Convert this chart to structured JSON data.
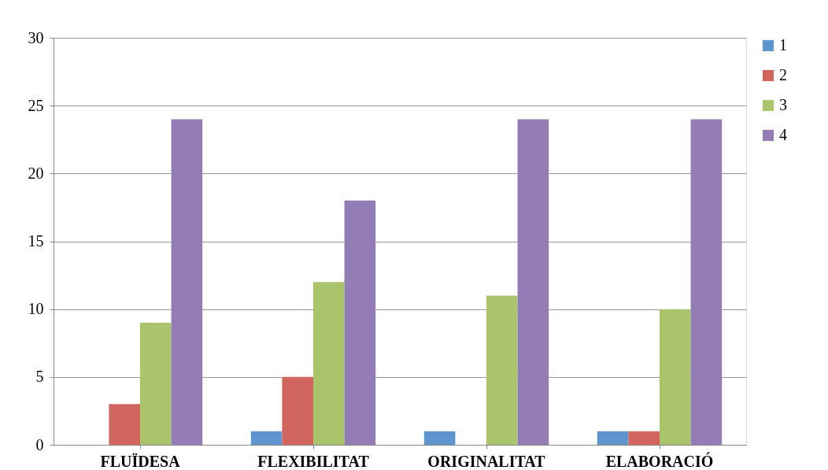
{
  "chart_data": {
    "type": "bar",
    "categories": [
      "FLUÏDESA",
      "FLEXIBILITAT",
      "ORIGINALITAT",
      "ELABORACIÓ"
    ],
    "series": [
      {
        "name": "1",
        "color": "#5f95cf",
        "values": [
          0,
          1,
          1,
          1
        ]
      },
      {
        "name": "2",
        "color": "#d0665e",
        "values": [
          3,
          5,
          0,
          1
        ]
      },
      {
        "name": "3",
        "color": "#a9c46a",
        "values": [
          9,
          12,
          11,
          10
        ]
      },
      {
        "name": "4",
        "color": "#937db4",
        "values": [
          24,
          18,
          24,
          24
        ]
      }
    ],
    "ylim": [
      0,
      30
    ],
    "yticks": [
      0,
      5,
      10,
      15,
      20,
      25,
      30
    ],
    "grid": "y",
    "legend": "right"
  }
}
